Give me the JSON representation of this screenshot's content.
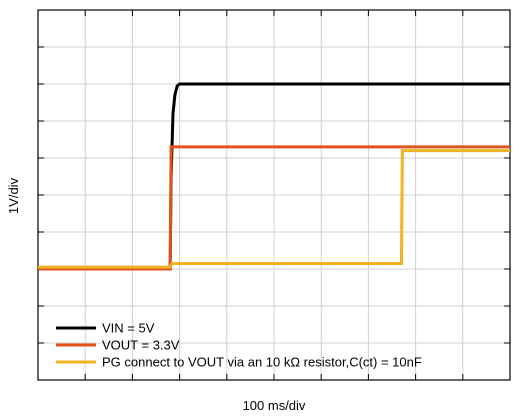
{
  "chart_data": {
    "type": "line",
    "xlabel": "100 ms/div",
    "ylabel": "1V/div",
    "x_divisions": 10,
    "y_divisions": 10,
    "grid": true,
    "legend_position": "bottom-left",
    "series": [
      {
        "name": "VIN = 5V",
        "color": "#000000",
        "x": [
          0,
          2.8,
          2.82,
          2.86,
          2.9,
          2.95,
          3.0,
          10
        ],
        "y": [
          0,
          0,
          2.5,
          4.2,
          4.7,
          4.95,
          5.0,
          5.0
        ]
      },
      {
        "name": "VOUT = 3.3V",
        "color": "#e0541c",
        "x": [
          0,
          2.8,
          2.82,
          10
        ],
        "y": [
          0,
          0,
          3.3,
          3.3
        ]
      },
      {
        "name": "PG connect to VOUT via an 10 kΩ resistor,C(ct) = 10nF",
        "color": "#f0b323",
        "x": [
          0,
          2.8,
          2.84,
          7.7,
          7.72,
          10
        ],
        "y": [
          0.05,
          0.05,
          0.15,
          0.15,
          3.2,
          3.2
        ]
      }
    ]
  }
}
